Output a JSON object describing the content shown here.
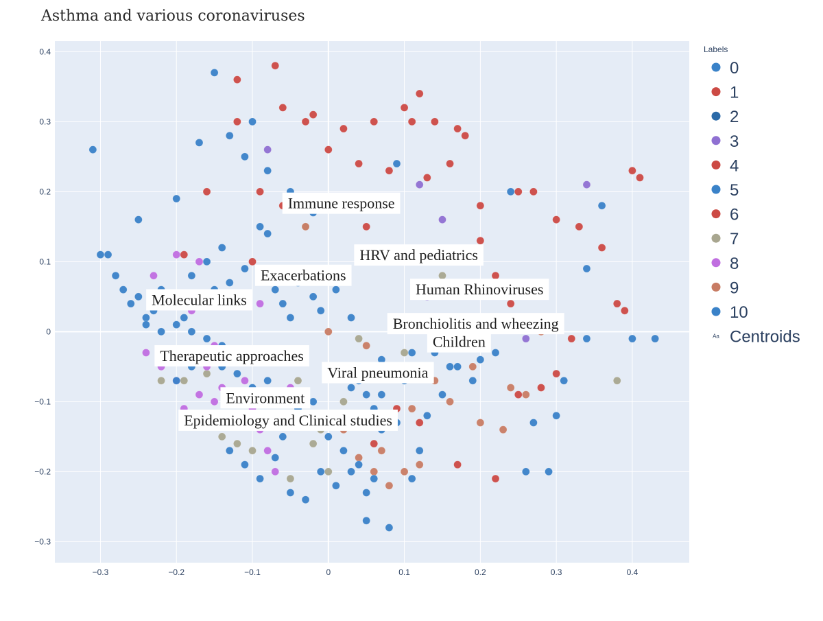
{
  "chart_data": {
    "type": "scatter",
    "title": "Asthma and various coronaviruses",
    "xlim": [
      -0.36,
      0.475
    ],
    "ylim": [
      -0.33,
      0.415
    ],
    "x_ticks": [
      -0.3,
      -0.2,
      -0.1,
      0,
      0.1,
      0.2,
      0.3,
      0.4
    ],
    "x_tick_labels": [
      "−0.3",
      "−0.2",
      "−0.1",
      "0",
      "0.1",
      "0.2",
      "0.3",
      "0.4"
    ],
    "y_ticks": [
      -0.3,
      -0.2,
      -0.1,
      0,
      0.1,
      0.2,
      0.3,
      0.4
    ],
    "y_tick_labels": [
      "−0.3",
      "−0.2",
      "−0.1",
      "0",
      "0.1",
      "0.2",
      "0.3",
      "0.4"
    ],
    "grid": true,
    "legend": {
      "title": "Labels",
      "placement": "right",
      "items": [
        {
          "label": "0",
          "color": "#3a82c8"
        },
        {
          "label": "1",
          "color": "#cc4a44"
        },
        {
          "label": "2",
          "color": "#2b6aa8"
        },
        {
          "label": "3",
          "color": "#8f70d2"
        },
        {
          "label": "4",
          "color": "#cc4a44"
        },
        {
          "label": "5",
          "color": "#3a82c8"
        },
        {
          "label": "6",
          "color": "#cc4a44"
        },
        {
          "label": "7",
          "color": "#a8a68f"
        },
        {
          "label": "8",
          "color": "#c06ee0"
        },
        {
          "label": "9",
          "color": "#c87c64"
        },
        {
          "label": "10",
          "color": "#3a82c8"
        },
        {
          "label": "Centroids",
          "color": "#2a3f5f",
          "marker": "Aa"
        }
      ]
    },
    "series": [
      {
        "label_index": 0,
        "color": "#3a82c8",
        "points": [
          [
            -0.31,
            0.26
          ],
          [
            -0.29,
            0.11
          ],
          [
            -0.28,
            0.08
          ],
          [
            -0.27,
            0.06
          ],
          [
            -0.26,
            0.04
          ],
          [
            -0.25,
            0.05
          ],
          [
            -0.24,
            0.02
          ],
          [
            -0.23,
            0.03
          ],
          [
            -0.22,
            0.06
          ],
          [
            -0.21,
            0.05
          ],
          [
            -0.2,
            0.04
          ],
          [
            -0.19,
            0.02
          ],
          [
            -0.18,
            0.08
          ],
          [
            -0.17,
            0.27
          ],
          [
            -0.16,
            0.1
          ],
          [
            -0.15,
            0.06
          ],
          [
            -0.14,
            0.12
          ],
          [
            -0.13,
            0.07
          ],
          [
            -0.12,
            0.04
          ],
          [
            -0.11,
            0.09
          ],
          [
            -0.1,
            0.3
          ],
          [
            -0.09,
            0.15
          ],
          [
            -0.08,
            0.14
          ],
          [
            -0.07,
            0.06
          ],
          [
            -0.06,
            0.04
          ],
          [
            -0.05,
            0.02
          ],
          [
            -0.04,
            0.07
          ],
          [
            -0.03,
            0.09
          ],
          [
            -0.02,
            0.05
          ],
          [
            -0.01,
            0.03
          ],
          [
            0.0,
            0.18
          ],
          [
            0.01,
            0.06
          ],
          [
            0.02,
            -0.05
          ],
          [
            0.03,
            0.02
          ],
          [
            0.04,
            -0.07
          ],
          [
            0.05,
            -0.09
          ],
          [
            0.06,
            -0.11
          ],
          [
            0.07,
            -0.04
          ],
          [
            0.08,
            -0.06
          ],
          [
            0.09,
            0.24
          ],
          [
            0.11,
            -0.03
          ],
          [
            0.13,
            0.02
          ],
          [
            0.15,
            0.0
          ],
          [
            0.17,
            -0.05
          ],
          [
            0.19,
            -0.07
          ],
          [
            0.22,
            0.06
          ],
          [
            0.24,
            0.2
          ],
          [
            0.27,
            -0.13
          ],
          [
            0.3,
            -0.12
          ],
          [
            0.34,
            0.09
          ],
          [
            0.36,
            0.18
          ],
          [
            0.4,
            -0.01
          ],
          [
            0.43,
            -0.01
          ],
          [
            -0.3,
            0.11
          ],
          [
            -0.25,
            0.16
          ],
          [
            -0.2,
            0.19
          ],
          [
            -0.15,
            0.37
          ],
          [
            -0.13,
            0.28
          ],
          [
            -0.11,
            0.25
          ],
          [
            -0.08,
            0.23
          ],
          [
            -0.05,
            0.2
          ],
          [
            -0.02,
            0.17
          ],
          [
            0.05,
            -0.27
          ],
          [
            0.08,
            -0.28
          ],
          [
            0.12,
            -0.17
          ]
        ]
      },
      {
        "label_index": 1,
        "color": "#cc4a44",
        "points": [
          [
            -0.12,
            0.36
          ],
          [
            -0.07,
            0.38
          ],
          [
            -0.06,
            0.32
          ],
          [
            -0.03,
            0.3
          ],
          [
            -0.02,
            0.31
          ],
          [
            0.0,
            0.26
          ],
          [
            0.02,
            0.29
          ],
          [
            0.04,
            0.24
          ],
          [
            0.06,
            0.3
          ],
          [
            0.1,
            0.32
          ],
          [
            0.11,
            0.3
          ],
          [
            0.14,
            0.3
          ],
          [
            0.17,
            0.29
          ],
          [
            0.18,
            0.28
          ],
          [
            0.12,
            0.34
          ],
          [
            0.08,
            0.23
          ],
          [
            0.13,
            0.22
          ],
          [
            0.16,
            0.24
          ],
          [
            -0.09,
            0.2
          ],
          [
            -0.06,
            0.18
          ],
          [
            0.05,
            0.15
          ],
          [
            0.2,
            0.18
          ],
          [
            0.25,
            0.2
          ],
          [
            0.27,
            0.2
          ],
          [
            0.3,
            0.16
          ],
          [
            0.33,
            0.15
          ],
          [
            0.36,
            0.12
          ],
          [
            0.38,
            0.04
          ],
          [
            0.4,
            0.23
          ],
          [
            0.41,
            0.22
          ],
          [
            0.39,
            0.03
          ],
          [
            0.32,
            -0.01
          ],
          [
            0.3,
            -0.06
          ],
          [
            0.28,
            -0.08
          ],
          [
            0.25,
            -0.09
          ],
          [
            0.22,
            -0.21
          ],
          [
            0.17,
            -0.19
          ],
          [
            0.12,
            -0.13
          ],
          [
            0.09,
            -0.11
          ],
          [
            0.06,
            -0.16
          ],
          [
            0.03,
            -0.05
          ],
          [
            -0.1,
            0.1
          ],
          [
            -0.05,
            0.08
          ],
          [
            0.2,
            0.13
          ],
          [
            0.22,
            0.08
          ],
          [
            0.24,
            0.04
          ],
          [
            0.27,
            0.02
          ],
          [
            -0.19,
            0.11
          ],
          [
            -0.16,
            0.2
          ],
          [
            -0.12,
            0.3
          ]
        ]
      },
      {
        "label_index": 3,
        "color": "#8f70d2",
        "points": [
          [
            -0.08,
            0.26
          ],
          [
            0.12,
            0.21
          ],
          [
            0.15,
            0.16
          ],
          [
            0.34,
            0.21
          ],
          [
            0.13,
            0.05
          ],
          [
            0.1,
            0.1
          ],
          [
            0.2,
            0.0
          ],
          [
            0.26,
            -0.01
          ],
          [
            0.08,
            0.11
          ],
          [
            0.16,
            0.06
          ]
        ]
      },
      {
        "label_index": 7,
        "color": "#a8a68f",
        "points": [
          [
            -0.22,
            -0.07
          ],
          [
            -0.19,
            -0.07
          ],
          [
            -0.16,
            -0.06
          ],
          [
            -0.14,
            -0.15
          ],
          [
            -0.12,
            -0.16
          ],
          [
            -0.1,
            -0.17
          ],
          [
            -0.08,
            -0.13
          ],
          [
            -0.05,
            -0.21
          ],
          [
            -0.04,
            -0.07
          ],
          [
            -0.02,
            -0.16
          ],
          [
            0.0,
            -0.2
          ],
          [
            0.02,
            -0.1
          ],
          [
            0.04,
            -0.01
          ],
          [
            0.38,
            -0.07
          ],
          [
            0.1,
            -0.03
          ],
          [
            0.15,
            0.08
          ],
          [
            -0.03,
            0.15
          ],
          [
            -0.01,
            -0.14
          ]
        ]
      },
      {
        "label_index": 8,
        "color": "#c06ee0",
        "points": [
          [
            -0.24,
            -0.03
          ],
          [
            -0.22,
            -0.05
          ],
          [
            -0.2,
            -0.07
          ],
          [
            -0.19,
            -0.11
          ],
          [
            -0.17,
            -0.09
          ],
          [
            -0.16,
            -0.05
          ],
          [
            -0.15,
            -0.1
          ],
          [
            -0.14,
            -0.08
          ],
          [
            -0.13,
            -0.12
          ],
          [
            -0.12,
            -0.09
          ],
          [
            -0.11,
            -0.07
          ],
          [
            -0.1,
            -0.11
          ],
          [
            -0.09,
            -0.14
          ],
          [
            -0.08,
            -0.17
          ],
          [
            -0.07,
            -0.2
          ],
          [
            -0.06,
            -0.12
          ],
          [
            -0.05,
            -0.08
          ],
          [
            -0.2,
            0.11
          ],
          [
            -0.18,
            0.03
          ],
          [
            -0.09,
            0.04
          ],
          [
            -0.23,
            0.08
          ],
          [
            -0.17,
            0.1
          ],
          [
            -0.15,
            -0.02
          ]
        ]
      },
      {
        "label_index": 9,
        "color": "#c87c64",
        "points": [
          [
            0.06,
            -0.2
          ],
          [
            0.07,
            -0.17
          ],
          [
            0.08,
            -0.22
          ],
          [
            0.1,
            -0.2
          ],
          [
            0.12,
            -0.19
          ],
          [
            0.02,
            -0.14
          ],
          [
            0.04,
            -0.18
          ],
          [
            0.11,
            -0.11
          ],
          [
            0.14,
            -0.07
          ],
          [
            0.2,
            -0.13
          ],
          [
            0.23,
            -0.14
          ],
          [
            0.26,
            -0.09
          ],
          [
            0.24,
            -0.08
          ],
          [
            0.19,
            -0.05
          ],
          [
            0.16,
            -0.1
          ],
          [
            -0.03,
            0.15
          ],
          [
            0.0,
            0.0
          ],
          [
            0.28,
            0.0
          ],
          [
            0.05,
            -0.02
          ],
          [
            0.09,
            -0.06
          ]
        ]
      },
      {
        "label_index": 10,
        "color": "#3a82c8",
        "points": [
          [
            -0.2,
            -0.07
          ],
          [
            -0.18,
            -0.05
          ],
          [
            -0.16,
            -0.03
          ],
          [
            -0.14,
            -0.05
          ],
          [
            -0.12,
            -0.06
          ],
          [
            -0.1,
            -0.08
          ],
          [
            -0.08,
            -0.07
          ],
          [
            -0.06,
            -0.09
          ],
          [
            -0.04,
            -0.11
          ],
          [
            -0.02,
            -0.13
          ],
          [
            0.0,
            -0.15
          ],
          [
            0.02,
            -0.17
          ],
          [
            0.04,
            -0.19
          ],
          [
            0.06,
            -0.21
          ],
          [
            -0.11,
            -0.19
          ],
          [
            -0.09,
            -0.21
          ],
          [
            -0.07,
            -0.18
          ],
          [
            -0.05,
            -0.23
          ],
          [
            -0.03,
            -0.24
          ],
          [
            -0.01,
            -0.2
          ],
          [
            0.01,
            -0.22
          ],
          [
            0.03,
            -0.2
          ],
          [
            0.05,
            -0.23
          ],
          [
            0.07,
            -0.14
          ],
          [
            0.09,
            -0.13
          ],
          [
            0.11,
            -0.21
          ],
          [
            0.13,
            -0.12
          ],
          [
            0.15,
            -0.09
          ],
          [
            -0.13,
            -0.17
          ],
          [
            -0.09,
            -0.12
          ],
          [
            -0.06,
            -0.15
          ],
          [
            -0.02,
            -0.1
          ],
          [
            0.01,
            -0.12
          ],
          [
            0.03,
            -0.08
          ],
          [
            0.07,
            -0.09
          ],
          [
            0.1,
            -0.07
          ],
          [
            0.12,
            -0.05
          ],
          [
            0.14,
            -0.03
          ],
          [
            0.16,
            -0.05
          ],
          [
            0.18,
            -0.02
          ],
          [
            0.2,
            -0.04
          ],
          [
            0.22,
            -0.03
          ],
          [
            0.26,
            -0.2
          ],
          [
            0.29,
            -0.2
          ],
          [
            0.31,
            -0.07
          ],
          [
            0.34,
            -0.01
          ],
          [
            -0.22,
            0.0
          ],
          [
            -0.24,
            0.01
          ],
          [
            -0.2,
            0.01
          ],
          [
            -0.18,
            0.0
          ],
          [
            -0.16,
            -0.01
          ],
          [
            -0.14,
            -0.02
          ]
        ]
      }
    ],
    "centroids": [
      {
        "label": "Immune response",
        "x": 0.017,
        "y": 0.183
      },
      {
        "label": "HRV and pediatrics",
        "x": 0.119,
        "y": 0.109
      },
      {
        "label": "Exacerbations",
        "x": -0.033,
        "y": 0.08
      },
      {
        "label": "Human Rhinoviruses",
        "x": 0.199,
        "y": 0.06
      },
      {
        "label": "Molecular links",
        "x": -0.17,
        "y": 0.045
      },
      {
        "label": "Bronchiolitis and wheezing",
        "x": 0.194,
        "y": 0.011
      },
      {
        "label": "Children",
        "x": 0.172,
        "y": -0.015
      },
      {
        "label": "Therapeutic approaches",
        "x": -0.127,
        "y": -0.035
      },
      {
        "label": "Viral pneumonia",
        "x": 0.065,
        "y": -0.059
      },
      {
        "label": "Environment",
        "x": -0.083,
        "y": -0.095
      },
      {
        "label": "Epidemiology and Clinical studies",
        "x": -0.053,
        "y": -0.127
      }
    ]
  }
}
